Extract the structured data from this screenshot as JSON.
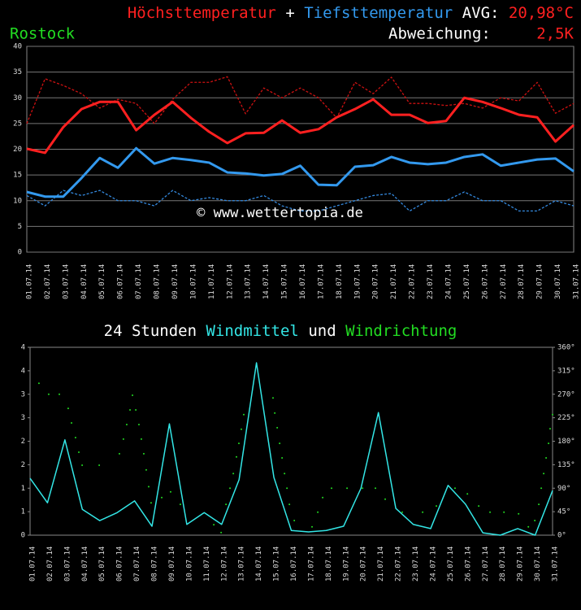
{
  "chart_data": [
    {
      "type": "line",
      "title_joiner": "+",
      "avg_label": "AVG:",
      "avg": "20,98°C",
      "avg_color": "#ff2020",
      "subtitle": "Rostock",
      "subtitle_color": "#22dd22",
      "deviation_label": "Abweichung:",
      "deviation": "2,5K",
      "deviation_color": "#ff2020",
      "watermark": "© www.wettertopia.de",
      "categories": [
        "01.07.14",
        "02.07.14",
        "03.07.14",
        "04.07.14",
        "05.07.14",
        "06.07.14",
        "07.07.14",
        "08.07.14",
        "09.07.14",
        "10.07.14",
        "11.07.14",
        "12.07.14",
        "13.07.14",
        "14.07.14",
        "15.07.14",
        "16.07.14",
        "17.07.14",
        "18.07.14",
        "19.07.14",
        "20.07.14",
        "21.07.14",
        "22.07.14",
        "23.07.14",
        "24.07.14",
        "25.07.14",
        "26.07.14",
        "27.07.14",
        "28.07.14",
        "29.07.14",
        "30.07.14",
        "31.07.14"
      ],
      "series": [
        {
          "color": "#cc1111",
          "dash": true,
          "values": [
            25,
            33.7,
            32.4,
            30.8,
            28,
            29.7,
            28.9,
            25,
            29.7,
            33,
            33,
            34.1,
            26.9,
            31.9,
            30,
            31.9,
            30,
            26.1,
            33,
            30.8,
            34,
            28.9,
            28.9,
            28.5,
            28.9,
            28,
            30,
            29.4,
            33,
            27,
            28.9
          ]
        },
        {
          "color": "#3388dd",
          "dash": true,
          "values": [
            11,
            9,
            12,
            11,
            12,
            10,
            10,
            9,
            12,
            10,
            10.6,
            10,
            10,
            11,
            9,
            8,
            8,
            9,
            10,
            11,
            11.4,
            8,
            10,
            10,
            11.7,
            10,
            10,
            8,
            8,
            10,
            9
          ]
        },
        {
          "name": "Höchsttemperatur",
          "color": "#ff2020",
          "dash": false,
          "values": [
            20.1,
            19.3,
            24.3,
            27.8,
            29.2,
            29.2,
            23.7,
            26.7,
            29.2,
            26.1,
            23.4,
            21.2,
            23.1,
            23.2,
            25.6,
            23.2,
            23.9,
            26.2,
            27.8,
            29.7,
            26.7,
            26.7,
            25.1,
            25.5,
            30,
            29.2,
            28,
            26.7,
            26.2,
            21.5,
            24.7
          ]
        },
        {
          "name": "Tiefsttemperatur",
          "color": "#3399ee",
          "dash": false,
          "values": [
            11.7,
            10.8,
            10.8,
            14.4,
            18.3,
            16.4,
            20.2,
            17.2,
            18.3,
            17.9,
            17.4,
            15.5,
            15.3,
            14.9,
            15.2,
            16.8,
            13.1,
            13,
            16.6,
            16.9,
            18.5,
            17.4,
            17.1,
            17.4,
            18.5,
            19,
            16.8,
            17.4,
            18,
            18.2,
            15.7
          ]
        }
      ],
      "ylim": [
        0,
        40
      ],
      "yticks": [
        0,
        5,
        10,
        15,
        20,
        25,
        30,
        35,
        40
      ],
      "grid": true
    },
    {
      "type": "wind",
      "title_prefix": "24 Stunden",
      "title_joiner": "und",
      "categories": [
        "01.07.14",
        "02.07.14",
        "03.07.14",
        "04.07.14",
        "05.07.14",
        "06.07.14",
        "07.07.14",
        "08.07.14",
        "09.07.14",
        "10.07.14",
        "11.07.14",
        "12.07.14",
        "13.07.14",
        "14.07.14",
        "15.07.14",
        "16.07.14",
        "17.07.14",
        "18.07.14",
        "19.07.14",
        "20.07.14",
        "21.07.14",
        "22.07.14",
        "23.07.14",
        "24.07.14",
        "25.07.14",
        "26.07.14",
        "27.07.14",
        "28.07.14",
        "29.07.14",
        "30.07.14",
        "31.07.14"
      ],
      "series": [
        {
          "name": "Windmittel",
          "color": "#33e6e6",
          "values": [
            1.21,
            0.69,
            2.03,
            0.55,
            0.31,
            0.48,
            0.73,
            0.19,
            2.37,
            0.23,
            0.48,
            0.23,
            1.18,
            3.67,
            1.23,
            0.1,
            0.07,
            0.1,
            0.19,
            1,
            2.61,
            0.57,
            0.23,
            0.14,
            1.06,
            0.66,
            0.05,
            0,
            0.14,
            0,
            0.95
          ]
        },
        {
          "name": "Windrichtung",
          "color": "#22dd22",
          "axis": "y2",
          "x": [
            1.51,
            2.07,
            2.68,
            3.19,
            3.38,
            3.61,
            3.8,
            3.99,
            4.97,
            6.13,
            6.36,
            6.55,
            6.74,
            6.88,
            7.07,
            7.25,
            7.39,
            7.53,
            7.67,
            7.81,
            7.95,
            8.56,
            9.07,
            9.63,
            11.55,
            11.97,
            12.25,
            12.48,
            12.67,
            12.85,
            12.99,
            13.13,
            13.27,
            14.95,
            15.05,
            15.19,
            15.33,
            15.47,
            15.61,
            15.75,
            15.89,
            16.17,
            17.19,
            17.52,
            17.8,
            18.31,
            19.2,
            20.09,
            20.83,
            21.39,
            22.37,
            23.54,
            24.33,
            25.4,
            26.11,
            26.76,
            27.41,
            28.21,
            29.05,
            29.61,
            29.98,
            30.21,
            30.35,
            30.49,
            30.63,
            30.77,
            30.86,
            31
          ],
          "values": [
            291,
            270,
            270,
            243,
            215,
            187,
            159,
            134,
            134,
            156,
            184,
            212,
            240,
            268,
            240,
            212,
            184,
            156,
            125,
            93,
            62,
            72,
            83,
            59,
            20,
            5,
            59,
            90,
            118,
            150,
            176,
            203,
            231,
            263,
            234,
            206,
            176,
            148,
            118,
            90,
            59,
            28,
            16,
            44,
            72,
            90,
            90,
            90,
            90,
            69,
            44,
            44,
            56,
            90,
            79,
            56,
            44,
            44,
            41,
            16,
            28,
            59,
            90,
            118,
            148,
            176,
            204,
            231
          ]
        }
      ],
      "xlim": [
        1,
        31
      ],
      "ylim": [
        0,
        4
      ],
      "yticks": [
        0,
        {
          "value": 0.5,
          "label": "1"
        },
        1,
        {
          "value": 1.5,
          "label": "2"
        },
        2,
        {
          "value": 2.5,
          "label": "3"
        },
        3,
        {
          "value": 3.5,
          "label": "4"
        },
        4
      ],
      "y2lim": [
        0,
        360
      ],
      "y2ticks": [
        {
          "value": 0,
          "label": "0°"
        },
        {
          "value": 45,
          "label": "45°"
        },
        {
          "value": 90,
          "label": "90°"
        },
        {
          "value": 135,
          "label": "135°"
        },
        {
          "value": 180,
          "label": "180°"
        },
        {
          "value": 225,
          "label": "225°"
        },
        {
          "value": 270,
          "label": "270°"
        },
        {
          "value": 315,
          "label": "315°"
        },
        {
          "value": 360,
          "label": "360°"
        }
      ],
      "grid": false
    }
  ]
}
